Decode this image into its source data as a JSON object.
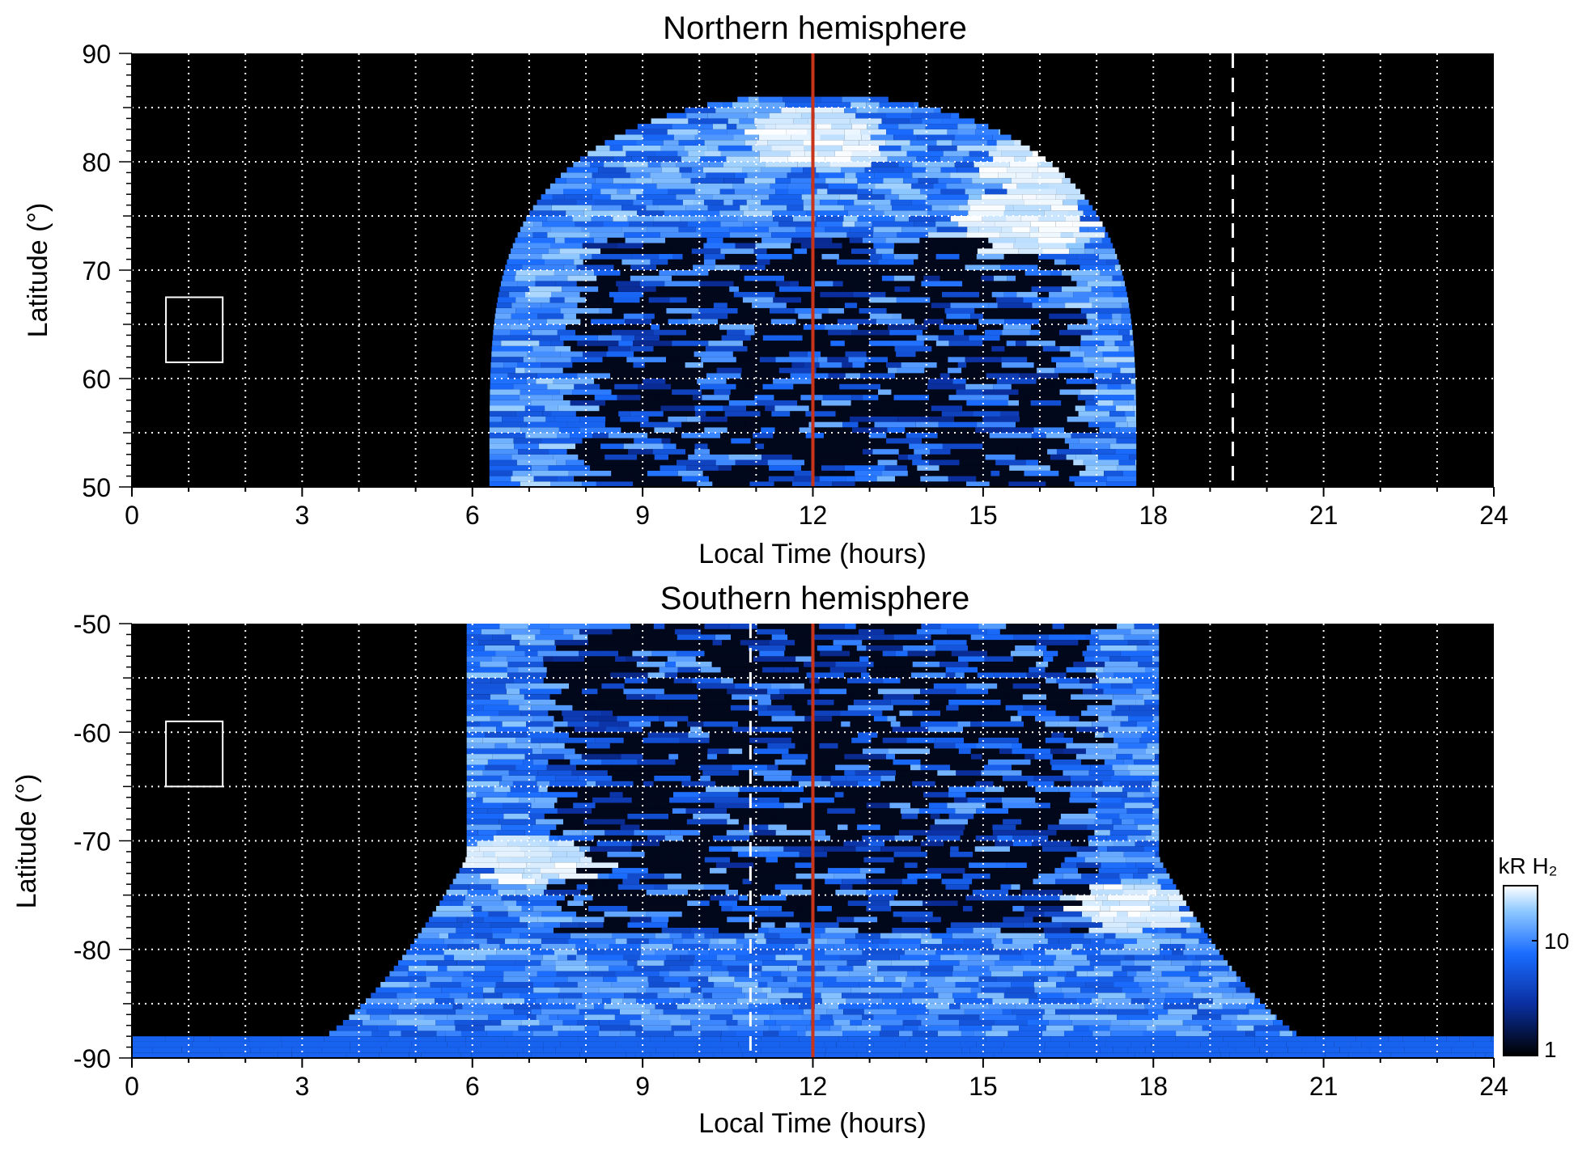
{
  "chart_data": [
    {
      "type": "heatmap",
      "title": "Northern hemisphere",
      "xlabel": "Local Time (hours)",
      "ylabel": "Latitude (°)",
      "xlim": [
        0,
        24
      ],
      "ylim": [
        50,
        90
      ],
      "xticks": [
        "0",
        "3",
        "6",
        "9",
        "12",
        "15",
        "18",
        "21",
        "24"
      ],
      "yticks": [
        "50",
        "60",
        "70",
        "80",
        "90"
      ],
      "grid": true,
      "emission_extent_lt": [
        6.3,
        17.7
      ],
      "emission_max_lat": 86,
      "dark_core_lat_top": 73,
      "bright_features": [
        {
          "lt": 15.5,
          "lat": 74,
          "level": "high"
        },
        {
          "lt": 16.0,
          "lat": 79,
          "level": "high"
        },
        {
          "lt": 11.8,
          "lat": 82,
          "level": "high"
        }
      ],
      "reference_lines": [
        {
          "x": 12,
          "color": "#c8341a",
          "style": "solid"
        },
        {
          "x": 19.4,
          "color": "#ffffff",
          "style": "dashed"
        }
      ],
      "box": {
        "lt": [
          0.6,
          1.6
        ],
        "lat": [
          61.5,
          67.5
        ]
      }
    },
    {
      "type": "heatmap",
      "title": "Southern hemisphere",
      "xlabel": "Local Time (hours)",
      "ylabel": "Latitude (°)",
      "xlim": [
        0,
        24
      ],
      "ylim": [
        -90,
        -50
      ],
      "xticks": [
        "0",
        "3",
        "6",
        "9",
        "12",
        "15",
        "18",
        "21",
        "24"
      ],
      "yticks": [
        "-50",
        "-60",
        "-70",
        "-80",
        "-90"
      ],
      "grid": true,
      "emission_extent_lt": [
        5.9,
        18.1
      ],
      "emission_base_lt": [
        2.6,
        21.4
      ],
      "dark_core_lat_bottom": -79,
      "bright_features": [
        {
          "lt": 6.8,
          "lat": -72,
          "level": "high"
        },
        {
          "lt": 17.3,
          "lat": -76.5,
          "level": "high"
        }
      ],
      "reference_lines": [
        {
          "x": 12,
          "color": "#c8341a",
          "style": "solid"
        },
        {
          "x": 10.9,
          "color": "#ffffff",
          "style": "dashed"
        }
      ],
      "box": {
        "lt": [
          0.6,
          1.6
        ],
        "lat": [
          -65,
          -59
        ]
      }
    }
  ],
  "colorbar": {
    "label": "kR H₂",
    "scale": "log",
    "range": [
      1,
      30
    ],
    "ticks": [
      "1",
      "10"
    ],
    "colors": [
      "#000000",
      "#0a2fa0",
      "#1a6cff",
      "#8ec8ff",
      "#ffffff"
    ]
  }
}
